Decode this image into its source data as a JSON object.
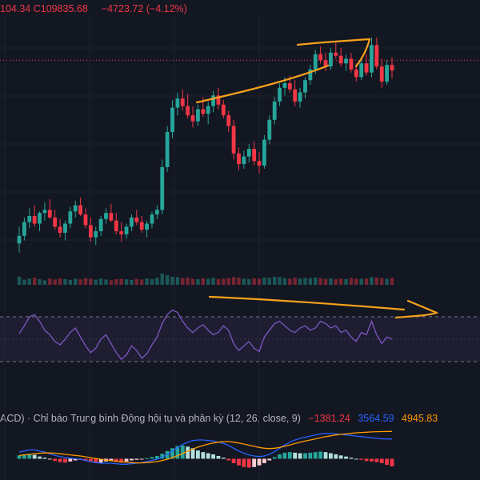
{
  "header": {
    "open_fragment": "104.34",
    "close_label": "C",
    "close_value": "109835.68",
    "change": "−4723.72 (−4.12%)"
  },
  "macd_header": {
    "title": "ACD) · Chỉ báo Trung bình Động hội tụ và phân kỳ (12, 26, close, 9)",
    "value1": "−1381.24",
    "value2": "3564.59",
    "value3": "4945.83"
  },
  "colors": {
    "up": "#26a69a",
    "down": "#f23645",
    "rsi": "#7e57c2",
    "macd": "#2962ff",
    "signal": "#ff9800",
    "annotation": "#f7a21b",
    "background": "#131722"
  },
  "chart_data": [
    {
      "type": "candlestick",
      "series": [
        {
          "ohlc": [
            [
              98500,
              99600,
              97900,
              99000
            ],
            [
              99000,
              100200,
              98700,
              99900
            ],
            [
              99900,
              100800,
              99500,
              100300
            ],
            [
              100300,
              101000,
              99600,
              99800
            ],
            [
              99800,
              100600,
              99300,
              100500
            ],
            [
              100500,
              101200,
              100000,
              100700
            ],
            [
              100700,
              101400,
              100100,
              100200
            ],
            [
              100200,
              100700,
              99400,
              99600
            ],
            [
              99600,
              100100,
              98900,
              99200
            ],
            [
              99200,
              100000,
              98700,
              99800
            ],
            [
              99800,
              100900,
              99500,
              100600
            ],
            [
              100600,
              101300,
              100200,
              101000
            ],
            [
              101000,
              101500,
              100300,
              100400
            ],
            [
              100400,
              100800,
              99500,
              99700
            ],
            [
              99700,
              100200,
              98600,
              98900
            ],
            [
              98900,
              99600,
              98400,
              99300
            ],
            [
              99300,
              100300,
              99000,
              100100
            ],
            [
              100100,
              100800,
              99800,
              100500
            ],
            [
              100500,
              101100,
              99900,
              100000
            ],
            [
              100000,
              100500,
              99100,
              99300
            ],
            [
              99300,
              99900,
              98600,
              99100
            ],
            [
              99100,
              99800,
              98800,
              99600
            ],
            [
              99600,
              100400,
              99300,
              100200
            ],
            [
              100200,
              100700,
              99700,
              99900
            ],
            [
              99900,
              100300,
              99200,
              99400
            ],
            [
              99400,
              100000,
              98900,
              99800
            ],
            [
              99800,
              100600,
              99500,
              100400
            ],
            [
              100400,
              101000,
              100100,
              100700
            ],
            [
              100700,
              104000,
              100400,
              103500
            ],
            [
              103500,
              106200,
              103200,
              105800
            ],
            [
              105800,
              107900,
              105400,
              107400
            ],
            [
              107400,
              108400,
              106900,
              108000
            ],
            [
              108000,
              108600,
              107200,
              107500
            ],
            [
              107500,
              108300,
              106700,
              106900
            ],
            [
              106900,
              107500,
              106100,
              106500
            ],
            [
              106500,
              107600,
              106200,
              107300
            ],
            [
              107300,
              108100,
              106800,
              107000
            ],
            [
              107000,
              107800,
              106300,
              107500
            ],
            [
              107500,
              108500,
              107100,
              108200
            ],
            [
              108200,
              108700,
              107300,
              107600
            ],
            [
              107600,
              107900,
              106700,
              106900
            ],
            [
              106900,
              107200,
              105800,
              106200
            ],
            [
              106200,
              106600,
              104000,
              104400
            ],
            [
              104400,
              104800,
              103300,
              103700
            ],
            [
              103700,
              104600,
              103400,
              104200
            ],
            [
              104200,
              105000,
              103800,
              104700
            ],
            [
              104700,
              105200,
              103600,
              103900
            ],
            [
              103900,
              104500,
              103100,
              103600
            ],
            [
              103600,
              105600,
              103400,
              105300
            ],
            [
              105300,
              106900,
              105000,
              106600
            ],
            [
              106600,
              108100,
              106300,
              107800
            ],
            [
              107800,
              109000,
              107500,
              108700
            ],
            [
              108700,
              109400,
              108200,
              109000
            ],
            [
              109000,
              109500,
              108400,
              108600
            ],
            [
              108600,
              109200,
              107500,
              107800
            ],
            [
              107800,
              108700,
              107400,
              108400
            ],
            [
              108400,
              109400,
              108000,
              109200
            ],
            [
              109200,
              110200,
              108900,
              109900
            ],
            [
              109900,
              111200,
              109600,
              110900
            ],
            [
              110900,
              111400,
              110300,
              110500
            ],
            [
              110500,
              111000,
              109800,
              110100
            ],
            [
              110100,
              111300,
              109900,
              111000
            ],
            [
              111000,
              111700,
              110600,
              110800
            ],
            [
              110800,
              111300,
              110100,
              110300
            ],
            [
              110300,
              110900,
              109800,
              110600
            ],
            [
              110600,
              111000,
              109700,
              109900
            ],
            [
              109900,
              110300,
              109100,
              109400
            ],
            [
              109400,
              110600,
              109200,
              110300
            ],
            [
              110300,
              110900,
              109500,
              109700
            ],
            [
              109700,
              112000,
              109400,
              111500
            ],
            [
              111500,
              112000,
              109900,
              110100
            ],
            [
              110100,
              110600,
              108700,
              109100
            ],
            [
              109100,
              110500,
              108900,
              110200
            ],
            [
              110200,
              110700,
              109300,
              109835.68
            ]
          ],
          "volume": [
            40,
            25,
            30,
            35,
            28,
            22,
            30,
            26,
            32,
            28,
            24,
            30,
            27,
            33,
            29,
            25,
            31,
            26,
            22,
            28,
            30,
            27,
            24,
            29,
            26,
            31,
            28,
            35,
            55,
            48,
            40,
            38,
            33,
            36,
            30,
            28,
            32,
            30,
            34,
            29,
            31,
            33,
            38,
            35,
            30,
            28,
            32,
            30,
            36,
            34,
            40,
            38,
            33,
            30,
            35,
            31,
            34,
            32,
            36,
            33,
            29,
            31,
            27,
            30,
            28,
            33,
            30,
            29,
            31,
            38,
            36,
            33,
            30,
            34
          ]
        }
      ],
      "ylim": [
        96000,
        113300
      ],
      "price_line": 110500
    },
    {
      "type": "line",
      "name": "RSI",
      "values": [
        55,
        62,
        70,
        72,
        66,
        58,
        54,
        48,
        45,
        50,
        56,
        60,
        52,
        44,
        38,
        42,
        50,
        54,
        46,
        38,
        32,
        36,
        44,
        40,
        33,
        37,
        45,
        52,
        64,
        72,
        76,
        74,
        66,
        60,
        56,
        60,
        63,
        58,
        54,
        56,
        62,
        58,
        46,
        40,
        44,
        48,
        42,
        39,
        52,
        58,
        64,
        66,
        62,
        58,
        56,
        60,
        62,
        58,
        60,
        66,
        64,
        60,
        62,
        56,
        58,
        52,
        48,
        56,
        54,
        66,
        54,
        46,
        52,
        50
      ],
      "levels": [
        70,
        30
      ],
      "ylim": [
        0,
        100
      ]
    },
    {
      "type": "bar",
      "name": "MACD",
      "histogram": [
        600,
        800,
        900,
        700,
        400,
        200,
        -100,
        -400,
        -600,
        -700,
        -500,
        -300,
        -200,
        -400,
        -600,
        -800,
        -700,
        -500,
        -400,
        -600,
        -700,
        -500,
        -300,
        -200,
        -100,
        100,
        300,
        500,
        900,
        1400,
        1900,
        2300,
        2400,
        2200,
        1900,
        1500,
        1200,
        1000,
        800,
        500,
        200,
        -300,
        -800,
        -1200,
        -1500,
        -1600,
        -1500,
        -1200,
        -800,
        -300,
        300,
        800,
        1100,
        1200,
        1100,
        1000,
        1000,
        1100,
        1200,
        1300,
        1200,
        1000,
        800,
        600,
        400,
        200,
        0,
        -200,
        -400,
        -500,
        -600,
        -800,
        -1100,
        -1381.24
      ],
      "macd": [
        1200,
        1400,
        1600,
        1600,
        1400,
        1200,
        900,
        600,
        400,
        200,
        100,
        0,
        -100,
        -300,
        -500,
        -700,
        -800,
        -800,
        -800,
        -900,
        -1000,
        -1000,
        -900,
        -800,
        -700,
        -500,
        -300,
        -100,
        300,
        800,
        1400,
        2000,
        2600,
        3000,
        3300,
        3400,
        3400,
        3300,
        3200,
        3000,
        2800,
        2400,
        1900,
        1400,
        1000,
        700,
        500,
        400,
        500,
        800,
        1300,
        1900,
        2500,
        3000,
        3400,
        3700,
        3900,
        4100,
        4300,
        4500,
        4600,
        4600,
        4500,
        4400,
        4300,
        4200,
        4100,
        4000,
        3900,
        3800,
        3700,
        3600,
        3580,
        3564.59
      ],
      "signal": [
        600,
        700,
        800,
        900,
        1000,
        1050,
        1050,
        1000,
        900,
        800,
        700,
        600,
        500,
        350,
        200,
        50,
        -100,
        -250,
        -350,
        -450,
        -550,
        -650,
        -700,
        -750,
        -750,
        -700,
        -620,
        -520,
        -350,
        -100,
        200,
        550,
        950,
        1350,
        1750,
        2100,
        2400,
        2650,
        2850,
        3000,
        3100,
        3100,
        3000,
        2850,
        2650,
        2450,
        2250,
        2050,
        1900,
        1850,
        1900,
        2050,
        2250,
        2500,
        2750,
        3000,
        3200,
        3400,
        3600,
        3800,
        4000,
        4150,
        4300,
        4400,
        4500,
        4600,
        4700,
        4750,
        4800,
        4850,
        4900,
        4920,
        4935,
        4945.83
      ],
      "ylim": [
        -2400,
        6000
      ]
    }
  ]
}
